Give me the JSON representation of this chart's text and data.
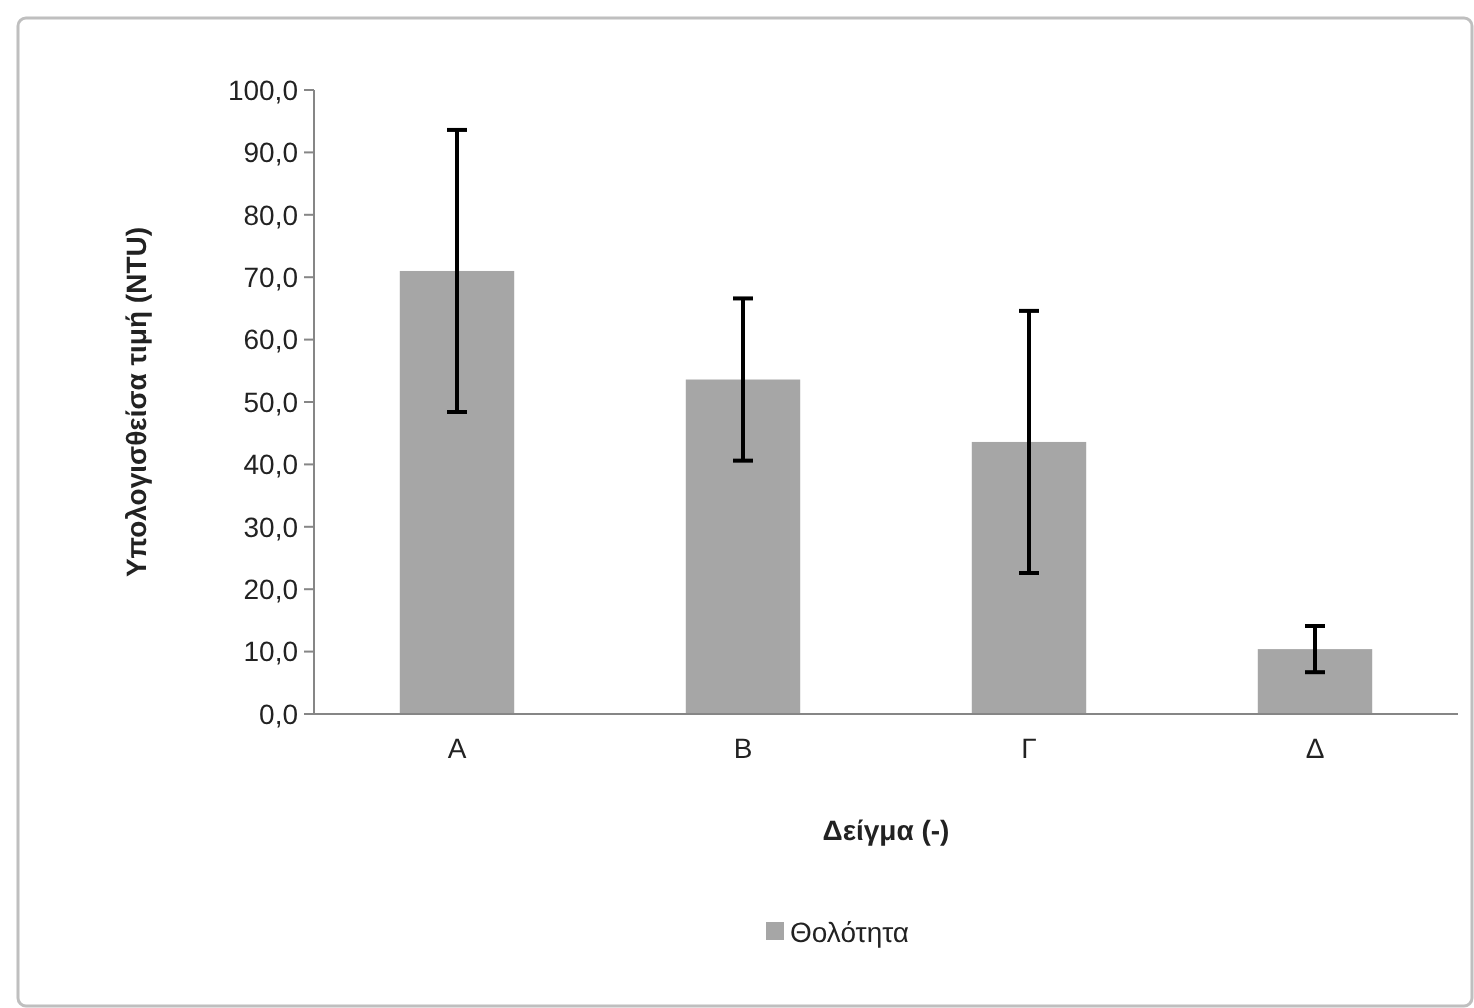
{
  "chart_data": {
    "type": "bar",
    "xlabel": "Δείγμα (-)",
    "ylabel": "Υπολογισθείσα τιμή (NTU)",
    "categories": [
      "Α",
      "Β",
      "Γ",
      "Δ"
    ],
    "series": [
      {
        "name": "Θολότητα",
        "color": "#a6a6a6",
        "values": [
          71.0,
          53.6,
          43.6,
          10.4
        ],
        "errors": [
          22.6,
          13.0,
          21.0,
          3.7
        ]
      }
    ],
    "ylim": [
      0,
      100
    ],
    "yticks": [
      {
        "value": 0,
        "label": "0,0"
      },
      {
        "value": 10,
        "label": "10,0"
      },
      {
        "value": 20,
        "label": "20,0"
      },
      {
        "value": 30,
        "label": "30,0"
      },
      {
        "value": 40,
        "label": "40,0"
      },
      {
        "value": 50,
        "label": "50,0"
      },
      {
        "value": 60,
        "label": "60,0"
      },
      {
        "value": 70,
        "label": "70,0"
      },
      {
        "value": 80,
        "label": "80,0"
      },
      {
        "value": 90,
        "label": "90,0"
      },
      {
        "value": 100,
        "label": "100,0"
      }
    ],
    "grid": false,
    "legend": "bottom"
  }
}
